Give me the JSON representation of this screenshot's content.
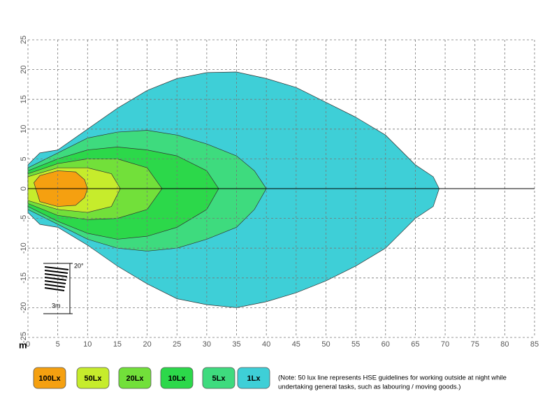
{
  "chart_data": {
    "type": "isolux",
    "xlabel": "m",
    "xlim": [
      0,
      85
    ],
    "xticks": [
      0,
      5,
      10,
      15,
      20,
      25,
      30,
      35,
      40,
      45,
      50,
      55,
      60,
      65,
      70,
      75,
      80,
      85
    ],
    "ylim": [
      -25,
      25
    ],
    "yticks": [
      -25,
      -20,
      -15,
      -10,
      -5,
      0,
      5,
      10,
      15,
      20,
      25
    ],
    "grid": true,
    "series": [
      {
        "name": "100Lx",
        "color": "#f5a010",
        "x": [
          1,
          2,
          5,
          8,
          9.5,
          10,
          9.5,
          8,
          5,
          2
        ],
        "values": [
          1,
          2.2,
          3,
          2.8,
          1.5,
          0,
          -1.5,
          -2.8,
          -3,
          -2.2
        ]
      },
      {
        "name": "50Lx",
        "color": "#c6ec2c",
        "x": [
          0,
          5,
          10,
          14,
          15.5,
          14,
          10,
          5,
          0
        ],
        "values": [
          2,
          3.5,
          3.5,
          2.5,
          0,
          -3,
          -4,
          -3.5,
          -2
        ]
      },
      {
        "name": "20Lx",
        "color": "#72e03a",
        "x": [
          0,
          5,
          10,
          15,
          20,
          22.5,
          20,
          15,
          10,
          5,
          0
        ],
        "values": [
          2.5,
          4.2,
          5,
          5,
          3.5,
          0,
          -3.5,
          -5,
          -5.2,
          -4.5,
          -2.5
        ]
      },
      {
        "name": "10Lx",
        "color": "#2cd84a",
        "x": [
          0,
          5,
          10,
          15,
          20,
          25,
          30,
          32,
          30,
          25,
          20,
          15,
          10,
          5,
          0
        ],
        "values": [
          3,
          5,
          6.5,
          7,
          6.5,
          5.5,
          3,
          0,
          -3.5,
          -6.5,
          -8,
          -8.5,
          -7.5,
          -5.5,
          -3
        ]
      },
      {
        "name": "5Lx",
        "color": "#3edb7e",
        "x": [
          0,
          5,
          10,
          15,
          20,
          25,
          30,
          35,
          38,
          40,
          38,
          35,
          30,
          25,
          20,
          15,
          10,
          5,
          0
        ],
        "values": [
          3.5,
          6,
          8.5,
          9.5,
          9.8,
          9,
          7.5,
          5.5,
          3,
          0,
          -3.5,
          -6.5,
          -8.5,
          -10,
          -10.5,
          -10,
          -8.5,
          -6,
          -3.5
        ]
      },
      {
        "name": "1Lx",
        "color": "#3ecfd7",
        "x": [
          0,
          2,
          5,
          10,
          15,
          20,
          25,
          30,
          35,
          40,
          45,
          50,
          55,
          60,
          65,
          68,
          69,
          68,
          65,
          60,
          55,
          50,
          45,
          40,
          35,
          30,
          25,
          20,
          15,
          10,
          5,
          2,
          0
        ],
        "values": [
          4,
          6,
          6.5,
          10,
          13.5,
          16.5,
          18.5,
          19.5,
          19.6,
          18.5,
          17,
          14.5,
          12,
          9,
          4,
          2,
          0,
          -3,
          -5,
          -10,
          -13,
          -15.5,
          -17.5,
          -19,
          -20,
          -19.5,
          -18.5,
          -16,
          -13,
          -9.5,
          -6.5,
          -6,
          -4
        ]
      }
    ],
    "note": [
      "(Note: 50 lux line represents HSE guidelines for working outside at night while",
      "undertaking general tasks, such as labouring / moving goods.)"
    ],
    "inset": {
      "angle_label": "20°",
      "distance_label": "3m"
    }
  }
}
